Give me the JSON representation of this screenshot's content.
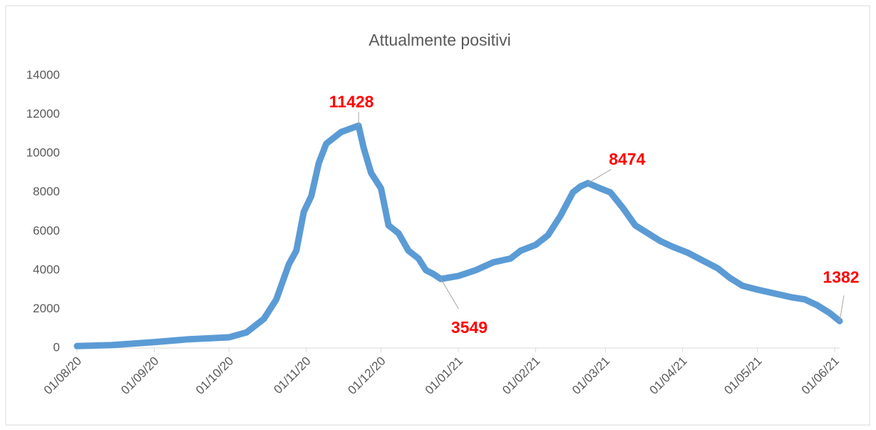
{
  "chart_data": {
    "type": "line",
    "title": "Attualmente positivi",
    "x": [
      "01/08/20",
      "15/08/20",
      "01/09/20",
      "15/09/20",
      "01/10/20",
      "08/10/20",
      "15/10/20",
      "20/10/20",
      "25/10/20",
      "28/10/20",
      "31/10/20",
      "03/11/20",
      "06/11/20",
      "09/11/20",
      "12/11/20",
      "15/11/20",
      "22/11/20",
      "24/11/20",
      "27/11/20",
      "01/12/20",
      "04/12/20",
      "08/12/20",
      "12/12/20",
      "16/12/20",
      "19/12/20",
      "22/12/20",
      "25/12/20",
      "01/01/21",
      "08/01/21",
      "15/01/21",
      "22/01/21",
      "26/01/21",
      "01/02/21",
      "06/02/21",
      "11/02/21",
      "16/02/21",
      "19/02/21",
      "22/02/21",
      "27/02/21",
      "03/03/21",
      "08/03/21",
      "13/03/21",
      "18/03/21",
      "23/03/21",
      "28/03/21",
      "03/04/21",
      "09/04/21",
      "15/04/21",
      "20/04/21",
      "25/04/21",
      "01/05/21",
      "08/05/21",
      "15/05/21",
      "20/05/21",
      "25/05/21",
      "30/05/21",
      "03/06/21"
    ],
    "series": [
      {
        "color": "#5b9bd5",
        "values": [
          100,
          150,
          300,
          450,
          550,
          800,
          1500,
          2500,
          4300,
          5000,
          7000,
          7800,
          9500,
          10500,
          10800,
          11100,
          11428,
          10300,
          9000,
          8200,
          6300,
          5900,
          5000,
          4600,
          4000,
          3800,
          3549,
          3700,
          4000,
          4400,
          4600,
          5000,
          5300,
          5800,
          6800,
          8000,
          8300,
          8474,
          8200,
          8000,
          7200,
          6300,
          5900,
          5500,
          5200,
          4900,
          4500,
          4100,
          3600,
          3200,
          3000,
          2800,
          2600,
          2500,
          2200,
          1800,
          1382
        ]
      }
    ],
    "annotations": [
      {
        "x": "22/11/20",
        "y": 11428,
        "color": "#ff0000"
      },
      {
        "x": "25/12/20",
        "y": 3549,
        "color": "#ff0000"
      },
      {
        "x": "22/02/21",
        "y": 8474,
        "color": "#ff0000"
      },
      {
        "x": "03/06/21",
        "y": 1382,
        "color": "#ff0000"
      }
    ],
    "xlim": [
      "01/08/20",
      "03/06/21"
    ],
    "xticks": [
      "01/08/20",
      "01/09/20",
      "01/10/20",
      "01/11/20",
      "01/12/20",
      "01/01/21",
      "01/02/21",
      "01/03/21",
      "01/04/21",
      "01/05/21",
      "01/06/21"
    ],
    "ylim": [
      0,
      14000
    ],
    "yticks": [
      0,
      2000,
      4000,
      6000,
      8000,
      10000,
      12000,
      14000
    ],
    "grid": false
  }
}
